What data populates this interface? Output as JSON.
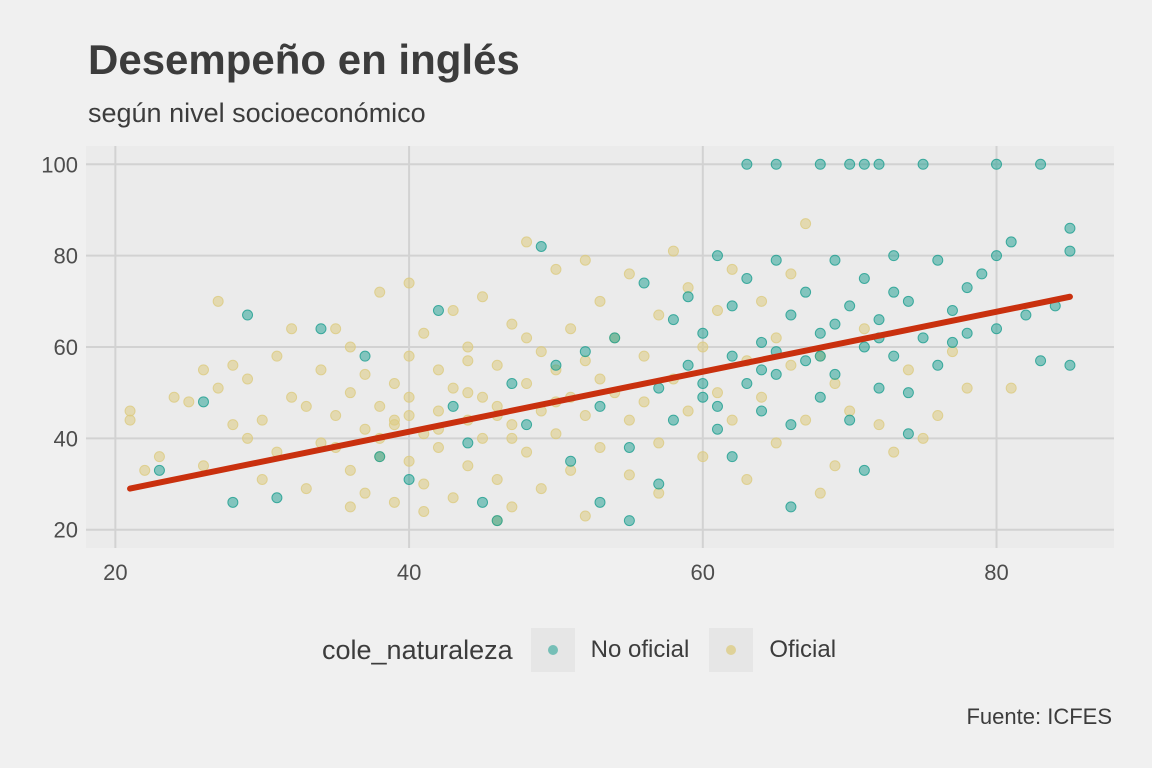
{
  "chart_data": {
    "type": "scatter",
    "title": "Desempeño en inglés",
    "subtitle": "según nivel socioeconómico",
    "caption": "Fuente: ICFES",
    "xlabel": "",
    "ylabel": "",
    "xlim": [
      18,
      88
    ],
    "ylim": [
      16,
      104
    ],
    "x_ticks": [
      20,
      40,
      60,
      80
    ],
    "y_ticks": [
      20,
      40,
      60,
      80,
      100
    ],
    "grid": true,
    "legend": {
      "title": "cole_naturaleza",
      "position": "bottom",
      "entries": [
        {
          "label": "No oficial",
          "color": "#1a9e8f"
        },
        {
          "label": "Oficial",
          "color": "#dccb7f"
        }
      ]
    },
    "trend_line": {
      "color": "#c9300e",
      "points": [
        [
          21,
          29
        ],
        [
          85,
          71
        ]
      ]
    },
    "series": [
      {
        "name": "Oficial",
        "color": "#dccb7f",
        "points": [
          [
            21,
            46
          ],
          [
            21,
            44
          ],
          [
            22,
            33
          ],
          [
            23,
            36
          ],
          [
            24,
            49
          ],
          [
            25,
            48
          ],
          [
            26,
            34
          ],
          [
            26,
            55
          ],
          [
            27,
            70
          ],
          [
            27,
            51
          ],
          [
            28,
            56
          ],
          [
            28,
            43
          ],
          [
            29,
            40
          ],
          [
            29,
            53
          ],
          [
            30,
            31
          ],
          [
            30,
            44
          ],
          [
            31,
            58
          ],
          [
            31,
            37
          ],
          [
            32,
            64
          ],
          [
            32,
            49
          ],
          [
            33,
            47
          ],
          [
            33,
            29
          ],
          [
            34,
            55
          ],
          [
            34,
            39
          ],
          [
            35,
            64
          ],
          [
            35,
            45
          ],
          [
            36,
            50
          ],
          [
            36,
            33
          ],
          [
            36,
            60
          ],
          [
            37,
            42
          ],
          [
            37,
            54
          ],
          [
            37,
            28
          ],
          [
            38,
            47
          ],
          [
            38,
            72
          ],
          [
            38,
            36
          ],
          [
            39,
            52
          ],
          [
            39,
            26
          ],
          [
            39,
            44
          ],
          [
            40,
            58
          ],
          [
            40,
            35
          ],
          [
            40,
            74
          ],
          [
            40,
            49
          ],
          [
            41,
            41
          ],
          [
            41,
            63
          ],
          [
            41,
            30
          ],
          [
            42,
            55
          ],
          [
            42,
            46
          ],
          [
            42,
            38
          ],
          [
            43,
            68
          ],
          [
            43,
            51
          ],
          [
            43,
            27
          ],
          [
            44,
            44
          ],
          [
            44,
            60
          ],
          [
            44,
            34
          ],
          [
            45,
            49
          ],
          [
            45,
            71
          ],
          [
            45,
            40
          ],
          [
            46,
            56
          ],
          [
            46,
            31
          ],
          [
            46,
            47
          ],
          [
            47,
            65
          ],
          [
            47,
            43
          ],
          [
            47,
            25
          ],
          [
            48,
            83
          ],
          [
            48,
            52
          ],
          [
            48,
            37
          ],
          [
            49,
            59
          ],
          [
            49,
            46
          ],
          [
            49,
            29
          ],
          [
            50,
            77
          ],
          [
            50,
            55
          ],
          [
            50,
            41
          ],
          [
            51,
            49
          ],
          [
            51,
            64
          ],
          [
            51,
            33
          ],
          [
            52,
            79
          ],
          [
            52,
            57
          ],
          [
            52,
            45
          ],
          [
            53,
            70
          ],
          [
            53,
            38
          ],
          [
            54,
            50
          ],
          [
            54,
            62
          ],
          [
            55,
            44
          ],
          [
            55,
            76
          ],
          [
            55,
            32
          ],
          [
            56,
            58
          ],
          [
            56,
            48
          ],
          [
            57,
            67
          ],
          [
            57,
            39
          ],
          [
            58,
            81
          ],
          [
            58,
            53
          ],
          [
            59,
            46
          ],
          [
            59,
            73
          ],
          [
            60,
            60
          ],
          [
            60,
            36
          ],
          [
            61,
            68
          ],
          [
            61,
            50
          ],
          [
            62,
            77
          ],
          [
            62,
            44
          ],
          [
            63,
            57
          ],
          [
            63,
            31
          ],
          [
            64,
            70
          ],
          [
            64,
            49
          ],
          [
            65,
            39
          ],
          [
            65,
            62
          ],
          [
            66,
            76
          ],
          [
            66,
            56
          ],
          [
            67,
            87
          ],
          [
            67,
            44
          ],
          [
            68,
            58
          ],
          [
            68,
            28
          ],
          [
            69,
            34
          ],
          [
            69,
            52
          ],
          [
            70,
            46
          ],
          [
            71,
            64
          ],
          [
            72,
            43
          ],
          [
            73,
            37
          ],
          [
            74,
            55
          ],
          [
            75,
            40
          ],
          [
            76,
            45
          ],
          [
            77,
            59
          ],
          [
            78,
            51
          ],
          [
            81,
            51
          ],
          [
            36,
            25
          ],
          [
            41,
            24
          ],
          [
            46,
            22
          ],
          [
            52,
            23
          ],
          [
            57,
            28
          ],
          [
            44,
            57
          ],
          [
            48,
            62
          ],
          [
            38,
            40
          ],
          [
            42,
            42
          ],
          [
            46,
            45
          ],
          [
            50,
            48
          ],
          [
            40,
            45
          ],
          [
            44,
            50
          ],
          [
            35,
            38
          ],
          [
            39,
            43
          ],
          [
            47,
            40
          ],
          [
            53,
            53
          ]
        ]
      },
      {
        "name": "No oficial",
        "color": "#1a9e8f",
        "points": [
          [
            23,
            33
          ],
          [
            26,
            48
          ],
          [
            28,
            26
          ],
          [
            29,
            67
          ],
          [
            31,
            27
          ],
          [
            34,
            64
          ],
          [
            37,
            58
          ],
          [
            38,
            36
          ],
          [
            40,
            31
          ],
          [
            42,
            68
          ],
          [
            43,
            47
          ],
          [
            44,
            39
          ],
          [
            45,
            26
          ],
          [
            46,
            22
          ],
          [
            47,
            52
          ],
          [
            48,
            43
          ],
          [
            49,
            82
          ],
          [
            50,
            56
          ],
          [
            51,
            35
          ],
          [
            52,
            59
          ],
          [
            53,
            47
          ],
          [
            53,
            26
          ],
          [
            54,
            62
          ],
          [
            55,
            38
          ],
          [
            55,
            22
          ],
          [
            56,
            74
          ],
          [
            57,
            51
          ],
          [
            57,
            30
          ],
          [
            58,
            66
          ],
          [
            58,
            44
          ],
          [
            59,
            71
          ],
          [
            59,
            56
          ],
          [
            60,
            49
          ],
          [
            60,
            63
          ],
          [
            61,
            80
          ],
          [
            61,
            42
          ],
          [
            62,
            58
          ],
          [
            62,
            69
          ],
          [
            63,
            52
          ],
          [
            63,
            75
          ],
          [
            63,
            100
          ],
          [
            64,
            46
          ],
          [
            64,
            61
          ],
          [
            65,
            100
          ],
          [
            65,
            79
          ],
          [
            65,
            54
          ],
          [
            66,
            67
          ],
          [
            66,
            43
          ],
          [
            67,
            72
          ],
          [
            67,
            57
          ],
          [
            68,
            100
          ],
          [
            68,
            63
          ],
          [
            68,
            49
          ],
          [
            69,
            79
          ],
          [
            69,
            54
          ],
          [
            70,
            100
          ],
          [
            70,
            69
          ],
          [
            70,
            44
          ],
          [
            71,
            100
          ],
          [
            71,
            60
          ],
          [
            71,
            75
          ],
          [
            72,
            66
          ],
          [
            72,
            100
          ],
          [
            72,
            51
          ],
          [
            73,
            80
          ],
          [
            73,
            58
          ],
          [
            74,
            70
          ],
          [
            74,
            41
          ],
          [
            75,
            100
          ],
          [
            75,
            62
          ],
          [
            76,
            79
          ],
          [
            76,
            56
          ],
          [
            77,
            68
          ],
          [
            78,
            73
          ],
          [
            78,
            63
          ],
          [
            79,
            76
          ],
          [
            80,
            80
          ],
          [
            80,
            100
          ],
          [
            80,
            64
          ],
          [
            81,
            83
          ],
          [
            82,
            67
          ],
          [
            83,
            100
          ],
          [
            83,
            57
          ],
          [
            84,
            69
          ],
          [
            85,
            86
          ],
          [
            85,
            81
          ],
          [
            85,
            56
          ],
          [
            62,
            36
          ],
          [
            66,
            25
          ],
          [
            71,
            33
          ],
          [
            60,
            52
          ],
          [
            64,
            55
          ],
          [
            68,
            58
          ],
          [
            72,
            62
          ],
          [
            74,
            50
          ],
          [
            61,
            47
          ],
          [
            65,
            59
          ],
          [
            69,
            65
          ],
          [
            73,
            72
          ],
          [
            77,
            61
          ]
        ]
      }
    ]
  }
}
